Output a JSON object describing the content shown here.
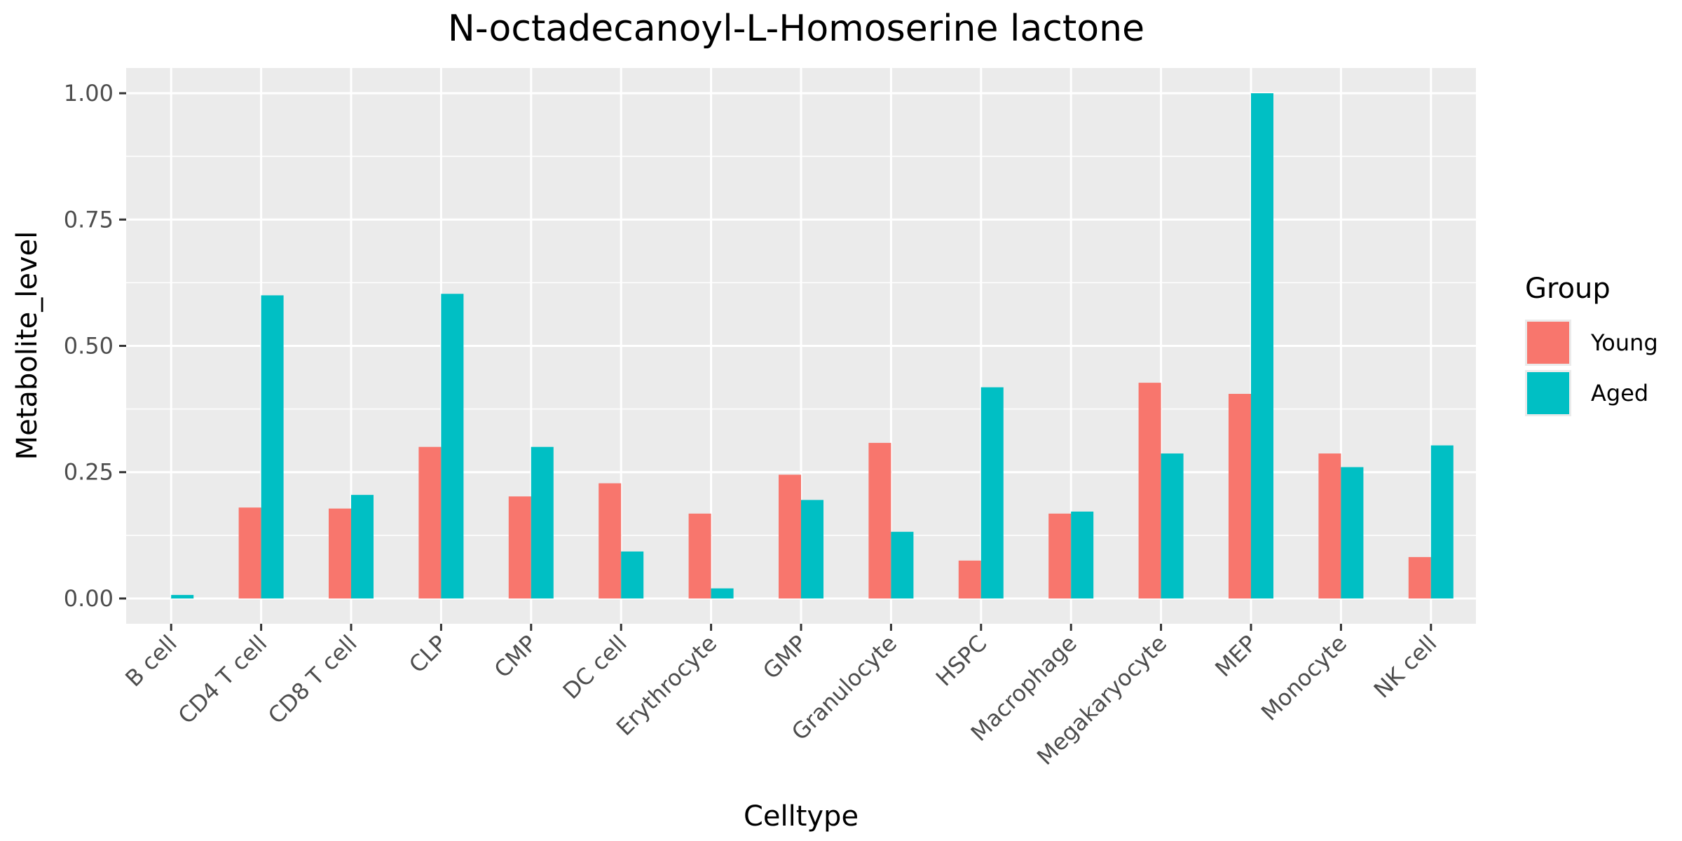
{
  "chart_data": {
    "type": "bar",
    "title": "N-octadecanoyl-L-Homoserine lactone",
    "xlabel": "Celltype",
    "ylabel": "Metabolite_level",
    "ylim": [
      -0.05,
      1.05
    ],
    "yticks": [
      0,
      0.25,
      0.5,
      0.75,
      1.0
    ],
    "ytick_labels": [
      "0.00",
      "0.25",
      "0.50",
      "0.75",
      "1.00"
    ],
    "grid": true,
    "legend": {
      "title": "Group",
      "placement": "right"
    },
    "categories": [
      "B cell",
      "CD4 T cell",
      "CD8 T cell",
      "CLP",
      "CMP",
      "DC cell",
      "Erythrocyte",
      "GMP",
      "Granulocyte",
      "HSPC",
      "Macrophage",
      "Megakaryocyte",
      "MEP",
      "Monocyte",
      "NK cell"
    ],
    "series": [
      {
        "name": "Young",
        "color": "#F8766D",
        "values": [
          0.0,
          0.18,
          0.178,
          0.3,
          0.202,
          0.228,
          0.168,
          0.245,
          0.308,
          0.075,
          0.168,
          0.427,
          0.405,
          0.287,
          0.082
        ]
      },
      {
        "name": "Aged",
        "color": "#00BFC4",
        "values": [
          0.007,
          0.6,
          0.205,
          0.603,
          0.3,
          0.093,
          0.02,
          0.195,
          0.132,
          0.418,
          0.172,
          0.287,
          1.0,
          0.26,
          0.303
        ]
      }
    ]
  }
}
